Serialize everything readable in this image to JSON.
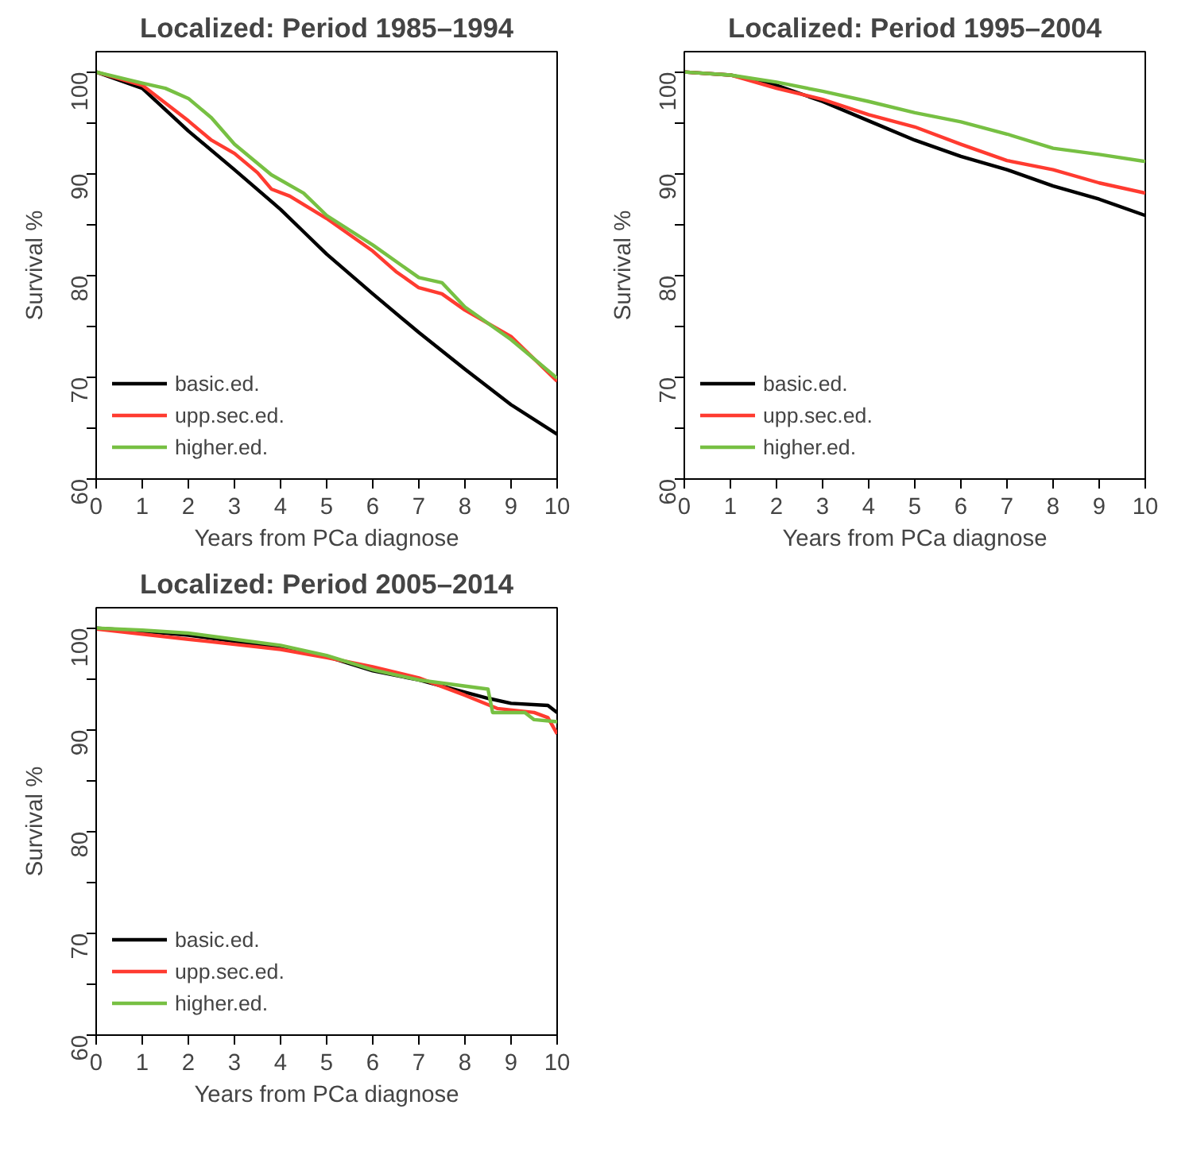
{
  "chart_data": [
    {
      "type": "line",
      "title": "Localized: Period 1985–1994",
      "xlabel": "Years from PCa diagnose",
      "ylabel": "Survival %",
      "xlim": [
        0,
        10
      ],
      "ylim": [
        60,
        102
      ],
      "xticks": [
        0,
        1,
        2,
        3,
        4,
        5,
        6,
        7,
        8,
        9,
        10
      ],
      "yticks": [
        60,
        {
          "value": 65,
          "label": null
        },
        70,
        {
          "value": 75,
          "label": null
        },
        80,
        {
          "value": 85,
          "label": null
        },
        90,
        {
          "value": 95,
          "label": null
        },
        100
      ],
      "grid": false,
      "legend": "bottom left",
      "line_style": "solid",
      "series": [
        {
          "name": "basic.ed.",
          "color": "#000000",
          "x": [
            0,
            1,
            2,
            3,
            4,
            4.5,
            5,
            6,
            7,
            8,
            9,
            10
          ],
          "values": [
            100,
            98.4,
            94.2,
            90.4,
            86.5,
            84.3,
            82.1,
            78.2,
            74.4,
            70.8,
            67.3,
            64.4
          ]
        },
        {
          "name": "upp.sec.ed.",
          "color": "#ff3b30",
          "x": [
            0,
            1,
            2,
            2.5,
            3,
            3.5,
            3.8,
            4.2,
            5,
            6,
            6.5,
            7,
            7.5,
            8,
            9,
            10
          ],
          "values": [
            100,
            98.7,
            95.2,
            93.3,
            92.0,
            90.1,
            88.5,
            87.8,
            85.6,
            82.4,
            80.4,
            78.8,
            78.2,
            76.6,
            74.0,
            69.6
          ]
        },
        {
          "name": "higher.ed.",
          "color": "#77c043",
          "x": [
            0,
            1,
            1.5,
            2,
            2.5,
            3,
            3.8,
            4.5,
            5,
            6,
            7,
            7.5,
            8,
            9,
            10
          ],
          "values": [
            100,
            98.9,
            98.4,
            97.4,
            95.5,
            92.9,
            89.9,
            88.1,
            85.9,
            83.0,
            79.8,
            79.3,
            76.9,
            73.7,
            69.9
          ]
        }
      ]
    },
    {
      "type": "line",
      "title": "Localized: Period 1995–2004",
      "xlabel": "Years from PCa diagnose",
      "ylabel": "Survival %",
      "xlim": [
        0,
        10
      ],
      "ylim": [
        60,
        102
      ],
      "xticks": [
        0,
        1,
        2,
        3,
        4,
        5,
        6,
        7,
        8,
        9,
        10
      ],
      "yticks": [
        60,
        {
          "value": 65,
          "label": null
        },
        70,
        {
          "value": 75,
          "label": null
        },
        80,
        {
          "value": 85,
          "label": null
        },
        90,
        {
          "value": 95,
          "label": null
        },
        100
      ],
      "grid": false,
      "legend": "bottom left",
      "line_style": "solid",
      "series": [
        {
          "name": "basic.ed.",
          "color": "#000000",
          "x": [
            0,
            1,
            2,
            3,
            4,
            5,
            6,
            7,
            8,
            9,
            10
          ],
          "values": [
            100,
            99.7,
            98.7,
            97.1,
            95.2,
            93.3,
            91.7,
            90.4,
            88.8,
            87.5,
            85.9
          ]
        },
        {
          "name": "upp.sec.ed.",
          "color": "#ff3b30",
          "x": [
            0,
            1,
            2,
            3,
            4,
            5,
            6,
            7,
            8,
            9,
            10
          ],
          "values": [
            100,
            99.7,
            98.4,
            97.3,
            95.8,
            94.6,
            92.9,
            91.3,
            90.4,
            89.1,
            88.1
          ]
        },
        {
          "name": "higher.ed.",
          "color": "#77c043",
          "x": [
            0,
            1,
            2,
            3,
            4,
            5,
            6,
            7,
            8,
            9,
            10
          ],
          "values": [
            100,
            99.7,
            99.0,
            98.1,
            97.1,
            96.0,
            95.1,
            93.9,
            92.5,
            91.9,
            91.2
          ]
        }
      ]
    },
    {
      "type": "line",
      "title": "Localized: Period 2005–2014",
      "xlabel": "Years from PCa diagnose",
      "ylabel": "Survival %",
      "xlim": [
        0,
        10
      ],
      "ylim": [
        60,
        102
      ],
      "xticks": [
        0,
        1,
        2,
        3,
        4,
        5,
        6,
        7,
        8,
        9,
        10
      ],
      "yticks": [
        60,
        {
          "value": 65,
          "label": null
        },
        70,
        {
          "value": 75,
          "label": null
        },
        80,
        {
          "value": 85,
          "label": null
        },
        90,
        {
          "value": 95,
          "label": null
        },
        100
      ],
      "grid": false,
      "legend": "bottom left",
      "line_style": "solid",
      "series": [
        {
          "name": "basic.ed.",
          "color": "#000000",
          "x": [
            0,
            1,
            2,
            3,
            4,
            5,
            6,
            7,
            8,
            8.5,
            9,
            9.8,
            10
          ],
          "values": [
            100,
            99.7,
            99.3,
            98.7,
            98.1,
            97.2,
            95.8,
            94.9,
            93.7,
            93.1,
            92.6,
            92.4,
            91.7
          ]
        },
        {
          "name": "upp.sec.ed.",
          "color": "#ff3b30",
          "x": [
            0,
            1,
            2,
            3,
            4,
            5,
            6,
            7,
            8,
            8.7,
            9.5,
            9.8,
            10
          ],
          "values": [
            99.9,
            99.4,
            98.9,
            98.4,
            97.9,
            97.1,
            96.2,
            95.1,
            93.4,
            92.1,
            91.7,
            91.2,
            89.6
          ]
        },
        {
          "name": "higher.ed.",
          "color": "#77c043",
          "x": [
            0,
            1,
            2,
            3,
            4,
            5,
            6,
            7,
            8.5,
            8.6,
            9.3,
            9.5,
            10
          ],
          "values": [
            100,
            99.8,
            99.5,
            98.9,
            98.3,
            97.3,
            95.9,
            94.9,
            94.0,
            91.7,
            91.7,
            91.0,
            90.8
          ]
        }
      ]
    }
  ]
}
